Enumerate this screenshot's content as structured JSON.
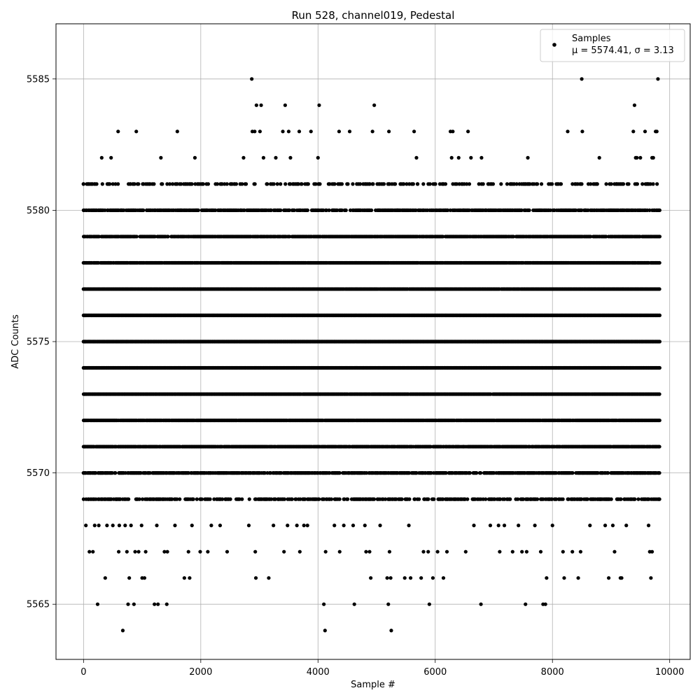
{
  "chart_data": {
    "type": "scatter",
    "title": "Run 528, channel019, Pedestal",
    "xlabel": "Sample #",
    "ylabel": "ADC Counts",
    "xlim": [
      -470,
      10350
    ],
    "ylim": [
      5562.9,
      5587.1
    ],
    "x_ticks": [
      0,
      2000,
      4000,
      6000,
      8000,
      10000
    ],
    "x_tick_labels": [
      "0",
      "2000",
      "4000",
      "6000",
      "8000",
      "10000"
    ],
    "y_ticks": [
      5565,
      5570,
      5575,
      5580,
      5585
    ],
    "y_tick_labels": [
      "5565",
      "5570",
      "5575",
      "5580",
      "5585"
    ],
    "grid": true,
    "legend": {
      "position": "top-right",
      "marker_label": "Samples",
      "stats_label": "μ = 5574.41, σ = 3.13"
    },
    "series": [
      {
        "name": "Samples",
        "color": "#000000",
        "marker": "circle",
        "points": [
          [
            0,
            5580
          ],
          [
            0,
            5581
          ],
          [
            20,
            5579
          ],
          [
            20,
            5578
          ],
          [
            20,
            5577
          ],
          [
            20,
            5576
          ],
          [
            20,
            5575
          ],
          [
            20,
            5574
          ],
          [
            20,
            5573
          ],
          [
            20,
            5572
          ],
          [
            20,
            5571
          ],
          [
            40,
            5570
          ],
          [
            40,
            5568
          ],
          [
            80,
            5569
          ],
          [
            100,
            5567
          ],
          [
            160,
            5567
          ],
          [
            190,
            5568
          ],
          [
            240,
            5565
          ],
          [
            260,
            5568
          ],
          [
            300,
            5580
          ],
          [
            310,
            5582
          ],
          [
            370,
            5566
          ],
          [
            400,
            5568
          ],
          [
            430,
            5578
          ],
          [
            470,
            5582
          ],
          [
            500,
            5568
          ],
          [
            560,
            5569
          ],
          [
            590,
            5583
          ],
          [
            600,
            5567
          ],
          [
            610,
            5568
          ],
          [
            640,
            5580
          ],
          [
            670,
            5564
          ],
          [
            710,
            5568
          ],
          [
            740,
            5567
          ],
          [
            760,
            5565
          ],
          [
            780,
            5566
          ],
          [
            800,
            5581
          ],
          [
            810,
            5568
          ],
          [
            860,
            5580
          ],
          [
            860,
            5565
          ],
          [
            880,
            5567
          ],
          [
            900,
            5583
          ],
          [
            920,
            5581
          ],
          [
            940,
            5567
          ],
          [
            990,
            5568
          ],
          [
            1000,
            5566
          ],
          [
            1040,
            5566
          ],
          [
            1060,
            5567
          ],
          [
            1080,
            5580
          ],
          [
            1210,
            5565
          ],
          [
            1250,
            5568
          ],
          [
            1260,
            5580
          ],
          [
            1270,
            5565
          ],
          [
            1320,
            5582
          ],
          [
            1330,
            5581
          ],
          [
            1380,
            5567
          ],
          [
            1420,
            5565
          ],
          [
            1430,
            5567
          ],
          [
            1520,
            5581
          ],
          [
            1560,
            5568
          ],
          [
            1600,
            5583
          ],
          [
            1660,
            5580
          ],
          [
            1720,
            5566
          ],
          [
            1750,
            5581
          ],
          [
            1790,
            5567
          ],
          [
            1810,
            5566
          ],
          [
            1850,
            5568
          ],
          [
            1900,
            5582
          ],
          [
            1930,
            5580
          ],
          [
            1990,
            5567
          ],
          [
            2030,
            5581
          ],
          [
            2100,
            5580
          ],
          [
            2120,
            5567
          ],
          [
            2180,
            5568
          ],
          [
            2200,
            5580
          ],
          [
            2270,
            5569
          ],
          [
            2330,
            5568
          ],
          [
            2420,
            5569
          ],
          [
            2450,
            5567
          ],
          [
            2530,
            5580
          ],
          [
            2570,
            5581
          ],
          [
            2640,
            5569
          ],
          [
            2680,
            5580
          ],
          [
            2730,
            5582
          ],
          [
            2800,
            5580
          ],
          [
            2820,
            5568
          ],
          [
            2870,
            5585
          ],
          [
            2880,
            5583
          ],
          [
            2920,
            5583
          ],
          [
            2930,
            5567
          ],
          [
            2940,
            5566
          ],
          [
            2950,
            5584
          ],
          [
            3010,
            5583
          ],
          [
            3030,
            5584
          ],
          [
            3070,
            5582
          ],
          [
            3090,
            5569
          ],
          [
            3160,
            5566
          ],
          [
            3200,
            5580
          ],
          [
            3240,
            5568
          ],
          [
            3280,
            5582
          ],
          [
            3320,
            5569
          ],
          [
            3400,
            5583
          ],
          [
            3420,
            5567
          ],
          [
            3440,
            5584
          ],
          [
            3480,
            5568
          ],
          [
            3500,
            5583
          ],
          [
            3530,
            5582
          ],
          [
            3560,
            5580
          ],
          [
            3640,
            5568
          ],
          [
            3680,
            5583
          ],
          [
            3690,
            5567
          ],
          [
            3760,
            5568
          ],
          [
            3820,
            5568
          ],
          [
            3880,
            5583
          ],
          [
            3960,
            5580
          ],
          [
            4000,
            5582
          ],
          [
            4020,
            5584
          ],
          [
            4060,
            5580
          ],
          [
            4100,
            5565
          ],
          [
            4120,
            5564
          ],
          [
            4130,
            5567
          ],
          [
            4180,
            5581
          ],
          [
            4260,
            5580
          ],
          [
            4280,
            5568
          ],
          [
            4360,
            5583
          ],
          [
            4370,
            5567
          ],
          [
            4440,
            5568
          ],
          [
            4540,
            5583
          ],
          [
            4600,
            5568
          ],
          [
            4620,
            5565
          ],
          [
            4700,
            5580
          ],
          [
            4800,
            5568
          ],
          [
            4820,
            5567
          ],
          [
            4880,
            5567
          ],
          [
            4900,
            5566
          ],
          [
            4930,
            5583
          ],
          [
            4960,
            5584
          ],
          [
            5040,
            5580
          ],
          [
            5060,
            5568
          ],
          [
            5180,
            5566
          ],
          [
            5200,
            5565
          ],
          [
            5210,
            5583
          ],
          [
            5220,
            5567
          ],
          [
            5240,
            5566
          ],
          [
            5250,
            5564
          ],
          [
            5300,
            5581
          ],
          [
            5360,
            5580
          ],
          [
            5420,
            5581
          ],
          [
            5480,
            5566
          ],
          [
            5550,
            5568
          ],
          [
            5580,
            5566
          ],
          [
            5640,
            5583
          ],
          [
            5680,
            5582
          ],
          [
            5700,
            5581
          ],
          [
            5760,
            5566
          ],
          [
            5800,
            5567
          ],
          [
            5880,
            5567
          ],
          [
            5900,
            5565
          ],
          [
            5960,
            5566
          ],
          [
            6040,
            5567
          ],
          [
            6080,
            5581
          ],
          [
            6140,
            5566
          ],
          [
            6200,
            5567
          ],
          [
            6260,
            5583
          ],
          [
            6280,
            5582
          ],
          [
            6300,
            5583
          ],
          [
            6400,
            5582
          ],
          [
            6480,
            5580
          ],
          [
            6520,
            5567
          ],
          [
            6560,
            5583
          ],
          [
            6610,
            5582
          ],
          [
            6660,
            5568
          ],
          [
            6780,
            5565
          ],
          [
            6790,
            5582
          ],
          [
            6860,
            5580
          ],
          [
            6940,
            5568
          ],
          [
            6960,
            5581
          ],
          [
            7080,
            5568
          ],
          [
            7100,
            5567
          ],
          [
            7180,
            5568
          ],
          [
            7300,
            5581
          ],
          [
            7320,
            5567
          ],
          [
            7420,
            5568
          ],
          [
            7480,
            5567
          ],
          [
            7540,
            5565
          ],
          [
            7560,
            5567
          ],
          [
            7580,
            5582
          ],
          [
            7620,
            5569
          ],
          [
            7700,
            5568
          ],
          [
            7760,
            5580
          ],
          [
            7800,
            5567
          ],
          [
            7840,
            5565
          ],
          [
            7880,
            5565
          ],
          [
            7900,
            5566
          ],
          [
            7940,
            5569
          ],
          [
            8000,
            5568
          ],
          [
            8100,
            5581
          ],
          [
            8180,
            5567
          ],
          [
            8200,
            5566
          ],
          [
            8260,
            5583
          ],
          [
            8300,
            5580
          ],
          [
            8340,
            5567
          ],
          [
            8400,
            5581
          ],
          [
            8440,
            5566
          ],
          [
            8480,
            5567
          ],
          [
            8500,
            5585
          ],
          [
            8510,
            5583
          ],
          [
            8560,
            5580
          ],
          [
            8640,
            5568
          ],
          [
            8700,
            5581
          ],
          [
            8760,
            5581
          ],
          [
            8800,
            5582
          ],
          [
            8820,
            5569
          ],
          [
            8900,
            5568
          ],
          [
            8960,
            5566
          ],
          [
            9000,
            5580
          ],
          [
            9030,
            5568
          ],
          [
            9060,
            5567
          ],
          [
            9100,
            5581
          ],
          [
            9160,
            5566
          ],
          [
            9180,
            5566
          ],
          [
            9260,
            5568
          ],
          [
            9300,
            5581
          ],
          [
            9380,
            5583
          ],
          [
            9400,
            5584
          ],
          [
            9420,
            5582
          ],
          [
            9440,
            5582
          ],
          [
            9480,
            5580
          ],
          [
            9500,
            5582
          ],
          [
            9580,
            5583
          ],
          [
            9620,
            5581
          ],
          [
            9640,
            5568
          ],
          [
            9660,
            5567
          ],
          [
            9680,
            5566
          ],
          [
            9700,
            5567
          ],
          [
            9700,
            5582
          ],
          [
            9720,
            5582
          ],
          [
            9760,
            5583
          ],
          [
            9780,
            5583
          ],
          [
            9800,
            5569
          ],
          [
            9800,
            5585
          ]
        ]
      }
    ],
    "dense_band": {
      "levels": [
        5569,
        5570,
        5571,
        5572,
        5573,
        5574,
        5575,
        5576,
        5577,
        5578,
        5579,
        5580,
        5581
      ],
      "level_fill_fraction": [
        0.55,
        0.8,
        0.92,
        0.97,
        0.99,
        1.0,
        1.0,
        1.0,
        0.99,
        0.96,
        0.88,
        0.72,
        0.35
      ],
      "x_range": [
        0,
        9830
      ]
    }
  }
}
